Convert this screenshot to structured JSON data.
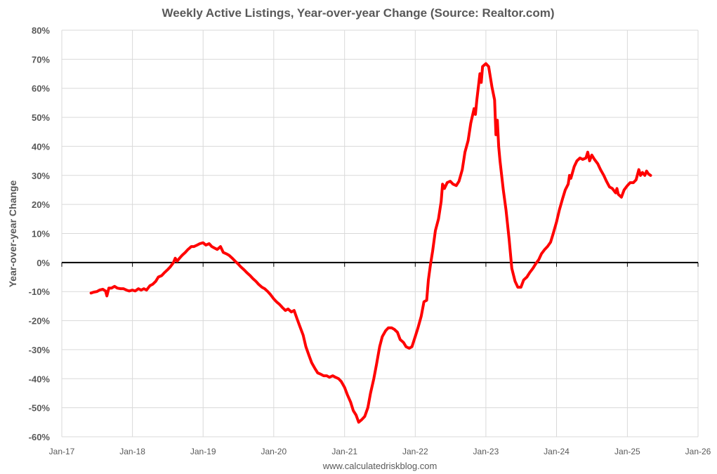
{
  "chart_data": {
    "type": "line",
    "title": "Weekly Active Listings, Year-over-year Change (Source: Realtor.com)",
    "ylabel": "Year-over-year Change",
    "xlabel": "",
    "source": "www.calculatedriskblog.com",
    "x_range": [
      "2017-01-01",
      "2026-01-01"
    ],
    "ylim": [
      -60,
      80
    ],
    "y_ticks": [
      80,
      70,
      60,
      50,
      40,
      30,
      20,
      10,
      0,
      -10,
      -20,
      -30,
      -40,
      -50,
      -60
    ],
    "y_tick_labels": [
      "80%",
      "70%",
      "60%",
      "50%",
      "40%",
      "30%",
      "20%",
      "10%",
      "0%",
      "-10%",
      "-20%",
      "-30%",
      "-40%",
      "-50%",
      "-60%"
    ],
    "x_ticks": [
      "2017-01-01",
      "2018-01-01",
      "2019-01-01",
      "2020-01-01",
      "2021-01-01",
      "2022-01-01",
      "2023-01-01",
      "2024-01-01",
      "2025-01-01",
      "2026-01-01"
    ],
    "x_tick_labels": [
      "Jan-17",
      "Jan-18",
      "Jan-19",
      "Jan-20",
      "Jan-21",
      "Jan-22",
      "Jan-23",
      "Jan-24",
      "Jan-25",
      "Jan-26"
    ],
    "grid": true,
    "zero_line": true,
    "colors": {
      "line": "#ff0000",
      "grid": "#d9d9d9",
      "text": "#595959",
      "axis": "#000000"
    },
    "series": [
      {
        "name": "",
        "points": [
          [
            "2017-06-01",
            -10.5
          ],
          [
            "2017-06-15",
            -10.2
          ],
          [
            "2017-07-01",
            -10.0
          ],
          [
            "2017-07-15",
            -9.5
          ],
          [
            "2017-08-01",
            -9.2
          ],
          [
            "2017-08-15",
            -9.8
          ],
          [
            "2017-08-22",
            -11.5
          ],
          [
            "2017-09-01",
            -8.8
          ],
          [
            "2017-09-15",
            -8.8
          ],
          [
            "2017-10-01",
            -8.2
          ],
          [
            "2017-10-15",
            -8.8
          ],
          [
            "2017-11-01",
            -9.0
          ],
          [
            "2017-11-15",
            -9.0
          ],
          [
            "2017-12-01",
            -9.5
          ],
          [
            "2017-12-15",
            -9.8
          ],
          [
            "2018-01-01",
            -9.5
          ],
          [
            "2018-01-15",
            -9.8
          ],
          [
            "2018-02-01",
            -9.0
          ],
          [
            "2018-02-15",
            -9.5
          ],
          [
            "2018-03-01",
            -9.0
          ],
          [
            "2018-03-15",
            -9.5
          ],
          [
            "2018-04-01",
            -8.0
          ],
          [
            "2018-04-15",
            -7.5
          ],
          [
            "2018-05-01",
            -6.5
          ],
          [
            "2018-05-15",
            -5.0
          ],
          [
            "2018-06-01",
            -4.5
          ],
          [
            "2018-06-15",
            -3.5
          ],
          [
            "2018-07-01",
            -2.5
          ],
          [
            "2018-07-15",
            -1.5
          ],
          [
            "2018-08-01",
            0.0
          ],
          [
            "2018-08-10",
            1.5
          ],
          [
            "2018-08-20",
            0.5
          ],
          [
            "2018-09-01",
            1.5
          ],
          [
            "2018-09-15",
            2.5
          ],
          [
            "2018-10-01",
            3.5
          ],
          [
            "2018-10-15",
            4.5
          ],
          [
            "2018-11-01",
            5.5
          ],
          [
            "2018-11-15",
            5.5
          ],
          [
            "2018-12-01",
            6.0
          ],
          [
            "2018-12-15",
            6.5
          ],
          [
            "2019-01-01",
            6.8
          ],
          [
            "2019-01-15",
            6.0
          ],
          [
            "2019-02-01",
            6.5
          ],
          [
            "2019-02-15",
            5.5
          ],
          [
            "2019-03-01",
            5.0
          ],
          [
            "2019-03-15",
            4.5
          ],
          [
            "2019-04-01",
            5.5
          ],
          [
            "2019-04-15",
            3.5
          ],
          [
            "2019-05-01",
            3.0
          ],
          [
            "2019-05-15",
            2.5
          ],
          [
            "2019-06-01",
            1.5
          ],
          [
            "2019-06-15",
            0.5
          ],
          [
            "2019-07-01",
            -0.5
          ],
          [
            "2019-07-15",
            -1.5
          ],
          [
            "2019-08-01",
            -2.5
          ],
          [
            "2019-08-15",
            -3.5
          ],
          [
            "2019-09-01",
            -4.5
          ],
          [
            "2019-09-15",
            -5.5
          ],
          [
            "2019-10-01",
            -6.5
          ],
          [
            "2019-10-15",
            -7.5
          ],
          [
            "2019-11-01",
            -8.5
          ],
          [
            "2019-11-15",
            -9.0
          ],
          [
            "2019-12-01",
            -10.0
          ],
          [
            "2019-12-15",
            -11.0
          ],
          [
            "2020-01-01",
            -12.5
          ],
          [
            "2020-01-15",
            -13.5
          ],
          [
            "2020-02-01",
            -14.5
          ],
          [
            "2020-02-15",
            -15.5
          ],
          [
            "2020-03-01",
            -16.5
          ],
          [
            "2020-03-15",
            -16.0
          ],
          [
            "2020-04-01",
            -17.0
          ],
          [
            "2020-04-15",
            -16.5
          ],
          [
            "2020-05-01",
            -19.5
          ],
          [
            "2020-05-15",
            -22.0
          ],
          [
            "2020-06-01",
            -25.0
          ],
          [
            "2020-06-15",
            -29.0
          ],
          [
            "2020-07-01",
            -32.0
          ],
          [
            "2020-07-15",
            -34.5
          ],
          [
            "2020-08-01",
            -36.5
          ],
          [
            "2020-08-15",
            -38.0
          ],
          [
            "2020-09-01",
            -38.5
          ],
          [
            "2020-09-15",
            -39.0
          ],
          [
            "2020-10-01",
            -39.0
          ],
          [
            "2020-10-15",
            -39.5
          ],
          [
            "2020-11-01",
            -39.0
          ],
          [
            "2020-11-15",
            -39.5
          ],
          [
            "2020-12-01",
            -40.0
          ],
          [
            "2020-12-15",
            -41.0
          ],
          [
            "2021-01-01",
            -43.0
          ],
          [
            "2021-01-15",
            -45.5
          ],
          [
            "2021-02-01",
            -48.0
          ],
          [
            "2021-02-15",
            -51.0
          ],
          [
            "2021-03-01",
            -52.5
          ],
          [
            "2021-03-15",
            -55.0
          ],
          [
            "2021-04-01",
            -54.0
          ],
          [
            "2021-04-15",
            -53.0
          ],
          [
            "2021-05-01",
            -50.0
          ],
          [
            "2021-05-15",
            -45.0
          ],
          [
            "2021-06-01",
            -40.0
          ],
          [
            "2021-06-15",
            -35.0
          ],
          [
            "2021-07-01",
            -29.0
          ],
          [
            "2021-07-15",
            -25.5
          ],
          [
            "2021-08-01",
            -23.5
          ],
          [
            "2021-08-15",
            -22.5
          ],
          [
            "2021-09-01",
            -22.5
          ],
          [
            "2021-09-15",
            -23.0
          ],
          [
            "2021-10-01",
            -24.0
          ],
          [
            "2021-10-15",
            -26.5
          ],
          [
            "2021-11-01",
            -27.5
          ],
          [
            "2021-11-15",
            -29.0
          ],
          [
            "2021-12-01",
            -29.5
          ],
          [
            "2021-12-15",
            -29.0
          ],
          [
            "2022-01-01",
            -25.5
          ],
          [
            "2022-01-15",
            -22.5
          ],
          [
            "2022-02-01",
            -18.5
          ],
          [
            "2022-02-15",
            -13.5
          ],
          [
            "2022-03-01",
            -13.0
          ],
          [
            "2022-03-10",
            -6.0
          ],
          [
            "2022-03-20",
            -1.0
          ],
          [
            "2022-04-01",
            4.0
          ],
          [
            "2022-04-15",
            11.0
          ],
          [
            "2022-05-01",
            15.0
          ],
          [
            "2022-05-15",
            21.0
          ],
          [
            "2022-05-22",
            27.0
          ],
          [
            "2022-06-01",
            25.5
          ],
          [
            "2022-06-15",
            27.5
          ],
          [
            "2022-07-01",
            28.0
          ],
          [
            "2022-07-15",
            27.0
          ],
          [
            "2022-08-01",
            26.5
          ],
          [
            "2022-08-15",
            28.0
          ],
          [
            "2022-09-01",
            32.0
          ],
          [
            "2022-09-15",
            38.0
          ],
          [
            "2022-10-01",
            42.0
          ],
          [
            "2022-10-15",
            48.0
          ],
          [
            "2022-11-01",
            53.0
          ],
          [
            "2022-11-08",
            51.0
          ],
          [
            "2022-11-15",
            56.0
          ],
          [
            "2022-12-01",
            65.0
          ],
          [
            "2022-12-08",
            62.0
          ],
          [
            "2022-12-15",
            67.5
          ],
          [
            "2023-01-01",
            68.5
          ],
          [
            "2023-01-15",
            67.5
          ],
          [
            "2023-02-01",
            60.5
          ],
          [
            "2023-02-15",
            56.0
          ],
          [
            "2023-02-22",
            44.0
          ],
          [
            "2023-03-01",
            49.0
          ],
          [
            "2023-03-08",
            40.0
          ],
          [
            "2023-03-15",
            35.0
          ],
          [
            "2023-04-01",
            25.0
          ],
          [
            "2023-04-15",
            18.0
          ],
          [
            "2023-05-01",
            8.0
          ],
          [
            "2023-05-15",
            -2.0
          ],
          [
            "2023-06-01",
            -6.5
          ],
          [
            "2023-06-15",
            -8.5
          ],
          [
            "2023-07-01",
            -8.5
          ],
          [
            "2023-07-15",
            -6.0
          ],
          [
            "2023-08-01",
            -5.0
          ],
          [
            "2023-08-15",
            -3.5
          ],
          [
            "2023-09-01",
            -2.0
          ],
          [
            "2023-09-15",
            -0.5
          ],
          [
            "2023-10-01",
            1.0
          ],
          [
            "2023-10-15",
            3.0
          ],
          [
            "2023-11-01",
            4.5
          ],
          [
            "2023-11-15",
            5.5
          ],
          [
            "2023-12-01",
            7.0
          ],
          [
            "2023-12-15",
            10.0
          ],
          [
            "2024-01-01",
            14.0
          ],
          [
            "2024-01-15",
            18.0
          ],
          [
            "2024-02-01",
            22.0
          ],
          [
            "2024-02-15",
            25.0
          ],
          [
            "2024-03-01",
            27.0
          ],
          [
            "2024-03-08",
            30.0
          ],
          [
            "2024-03-15",
            29.0
          ],
          [
            "2024-04-01",
            33.0
          ],
          [
            "2024-04-15",
            35.0
          ],
          [
            "2024-05-01",
            36.0
          ],
          [
            "2024-05-15",
            35.5
          ],
          [
            "2024-06-01",
            36.0
          ],
          [
            "2024-06-10",
            38.0
          ],
          [
            "2024-06-20",
            35.0
          ],
          [
            "2024-07-01",
            37.0
          ],
          [
            "2024-07-15",
            35.5
          ],
          [
            "2024-08-01",
            34.0
          ],
          [
            "2024-08-15",
            32.0
          ],
          [
            "2024-09-01",
            30.0
          ],
          [
            "2024-09-15",
            28.0
          ],
          [
            "2024-10-01",
            26.0
          ],
          [
            "2024-10-15",
            25.5
          ],
          [
            "2024-11-01",
            24.0
          ],
          [
            "2024-11-08",
            25.5
          ],
          [
            "2024-11-15",
            23.5
          ],
          [
            "2024-12-01",
            22.5
          ],
          [
            "2024-12-15",
            25.0
          ],
          [
            "2025-01-01",
            26.5
          ],
          [
            "2025-01-15",
            27.5
          ],
          [
            "2025-02-01",
            27.5
          ],
          [
            "2025-02-15",
            28.5
          ],
          [
            "2025-03-01",
            32.0
          ],
          [
            "2025-03-10",
            30.0
          ],
          [
            "2025-03-20",
            31.0
          ],
          [
            "2025-04-01",
            30.0
          ],
          [
            "2025-04-10",
            31.5
          ],
          [
            "2025-04-20",
            30.5
          ],
          [
            "2025-05-01",
            30.0
          ]
        ]
      }
    ]
  }
}
